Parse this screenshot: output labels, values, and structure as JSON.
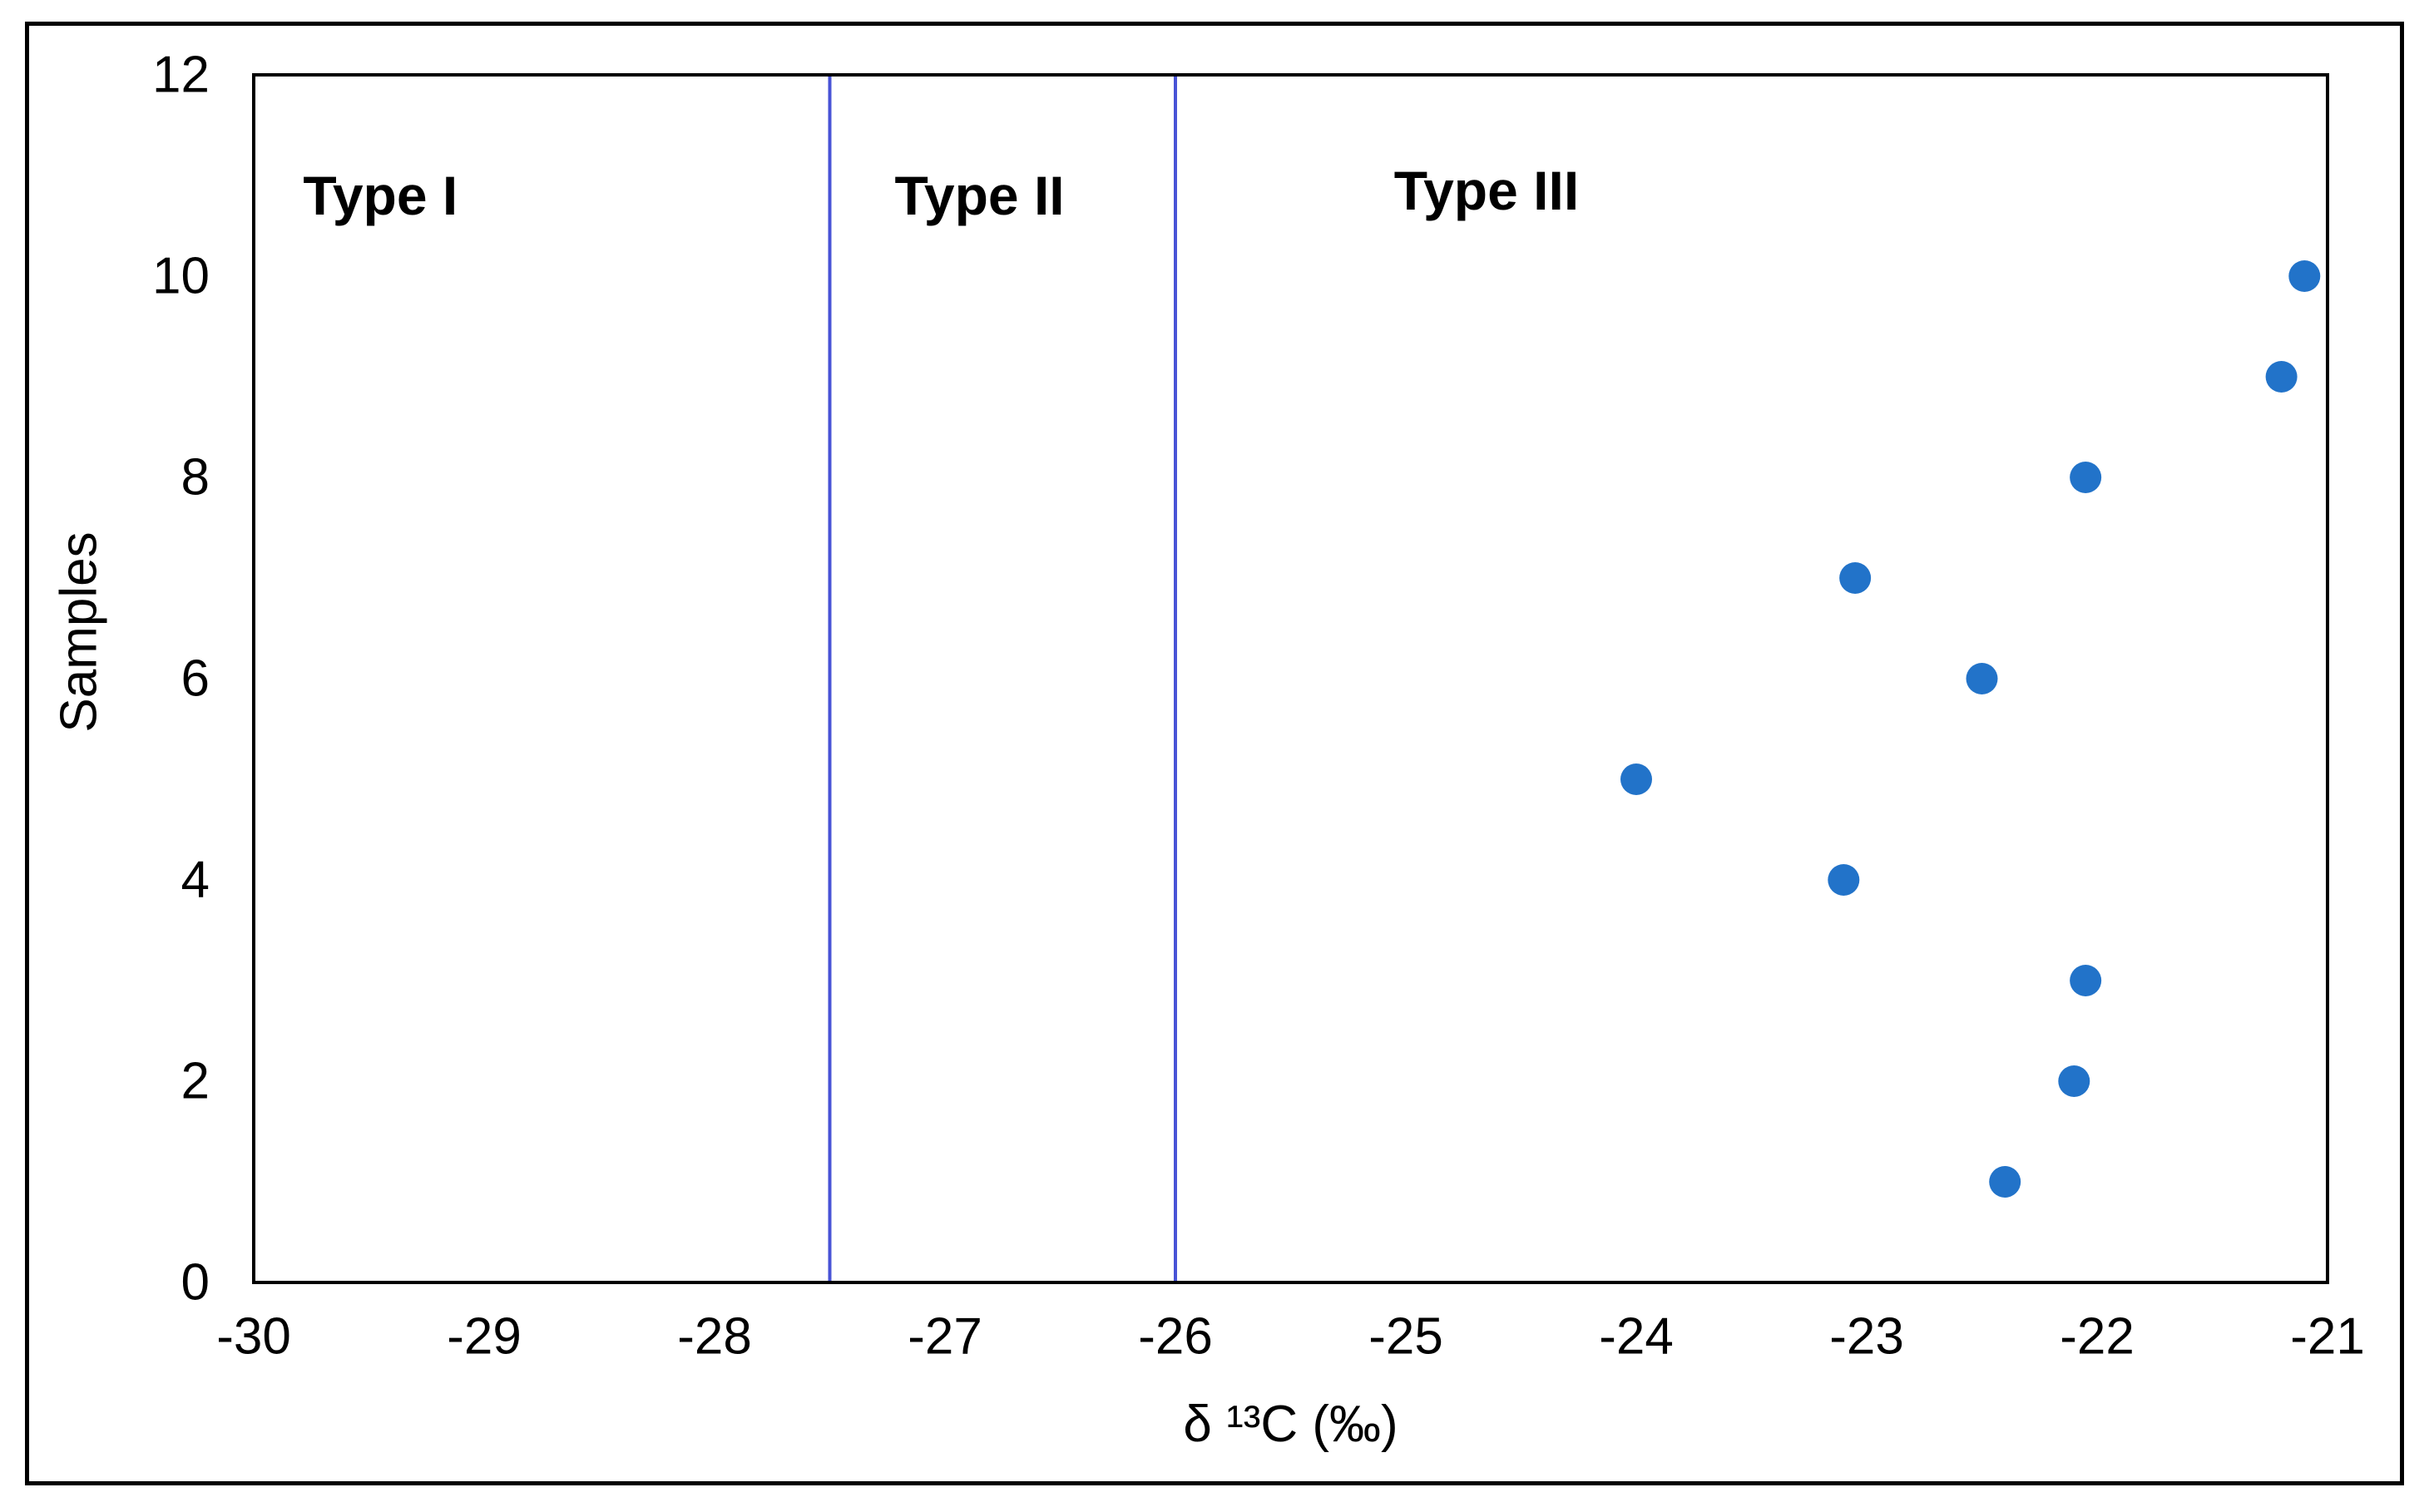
{
  "chart_data": {
    "type": "scatter",
    "title": "",
    "xlabel": "δ ¹³C (‰)",
    "ylabel": "Samples",
    "xlim": [
      -30,
      -21
    ],
    "ylim": [
      0,
      12
    ],
    "x_ticks": [
      -30,
      -29,
      -28,
      -27,
      -26,
      -25,
      -24,
      -23,
      -22,
      -21
    ],
    "y_ticks": [
      0,
      2,
      4,
      6,
      8,
      10,
      12
    ],
    "grid": false,
    "legend": "none",
    "point_color": "#2273C9",
    "divider_color": "#4853D6",
    "axis_color": "#000000",
    "region_dividers_x": [
      -27.5,
      -26
    ],
    "region_labels": [
      {
        "text": "Type I",
        "x": -29.45,
        "y": 10.8
      },
      {
        "text": "Type II",
        "x": -26.85,
        "y": 10.8
      },
      {
        "text": "Type III",
        "x": -24.65,
        "y": 10.85
      }
    ],
    "series": [
      {
        "name": "Samples",
        "points": [
          {
            "x": -22.4,
            "y": 1
          },
          {
            "x": -22.1,
            "y": 2
          },
          {
            "x": -22.05,
            "y": 3
          },
          {
            "x": -23.1,
            "y": 4
          },
          {
            "x": -24.0,
            "y": 5
          },
          {
            "x": -22.5,
            "y": 6
          },
          {
            "x": -23.05,
            "y": 7
          },
          {
            "x": -22.05,
            "y": 8
          },
          {
            "x": -21.2,
            "y": 9
          },
          {
            "x": -21.1,
            "y": 10
          }
        ]
      }
    ]
  }
}
